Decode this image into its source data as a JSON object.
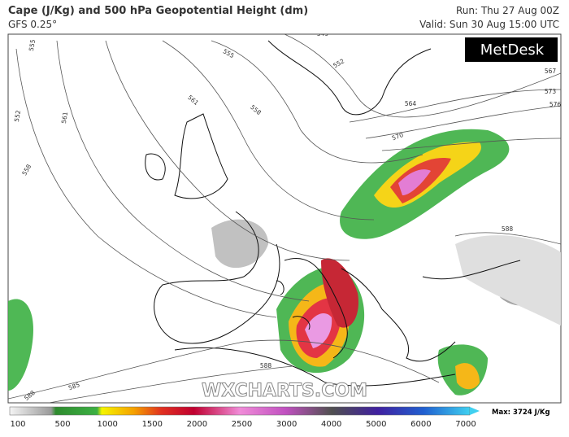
{
  "header": {
    "title": "Cape (J/Kg) and 500 hPa Geopotential Height (dm)",
    "model": "GFS 0.25°",
    "run": "Run: Thu 27 Aug 00Z",
    "valid": "Valid: Sun 30 Aug 15:00 UTC"
  },
  "logo": "MetDesk",
  "watermark": "WXCHARTS.COM",
  "contour_labels": [
    "555",
    "561",
    "552",
    "558",
    "549",
    "555",
    "561",
    "558",
    "552",
    "567",
    "573",
    "576",
    "570",
    "564",
    "588",
    "588",
    "585",
    "588"
  ],
  "legend": {
    "ticks": [
      100,
      500,
      1000,
      1500,
      2000,
      2500,
      3000,
      4000,
      5000,
      6000,
      7000
    ],
    "max": "Max: 3724 J/Kg"
  }
}
